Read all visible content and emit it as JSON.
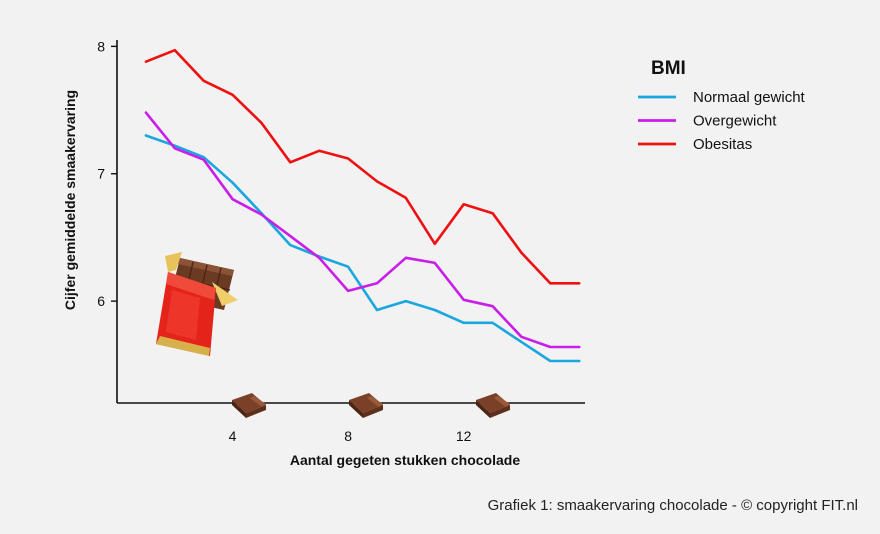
{
  "chart_data": {
    "type": "line",
    "xlabel": "Aantal gegeten stukken chocolade",
    "ylabel": "Cijfer gemiddelde smaakervaring",
    "x": [
      1,
      2,
      3,
      4,
      5,
      6,
      7,
      8,
      9,
      10,
      11,
      12,
      13,
      14,
      15,
      16
    ],
    "xticks": [
      4,
      8,
      12
    ],
    "yticks": [
      6,
      7,
      8
    ],
    "xlim": [
      0,
      16.2
    ],
    "ylim": [
      5.2,
      8.05
    ],
    "grid": false,
    "legend": {
      "title": "BMI",
      "position": "top-right"
    },
    "series": [
      {
        "name": "Normaal gewicht",
        "color": "#1aa7e0",
        "values": [
          7.3,
          7.22,
          7.13,
          6.93,
          6.69,
          6.44,
          6.35,
          6.27,
          5.93,
          6.0,
          5.93,
          5.83,
          5.83,
          5.68,
          5.53,
          5.53
        ]
      },
      {
        "name": "Overgewicht",
        "color": "#c81ee8",
        "values": [
          7.48,
          7.2,
          7.11,
          6.8,
          6.68,
          6.51,
          6.34,
          6.08,
          6.14,
          6.34,
          6.3,
          6.01,
          5.96,
          5.72,
          5.64,
          5.64
        ]
      },
      {
        "name": "Obesitas",
        "color": "#ee1111",
        "values": [
          7.88,
          7.97,
          7.73,
          7.62,
          7.4,
          7.09,
          7.18,
          7.12,
          6.94,
          6.81,
          6.45,
          6.76,
          6.69,
          6.38,
          6.14,
          6.14
        ]
      }
    ]
  },
  "caption": "Grafiek 1: smaakervaring chocolade - © copyright FIT.nl"
}
